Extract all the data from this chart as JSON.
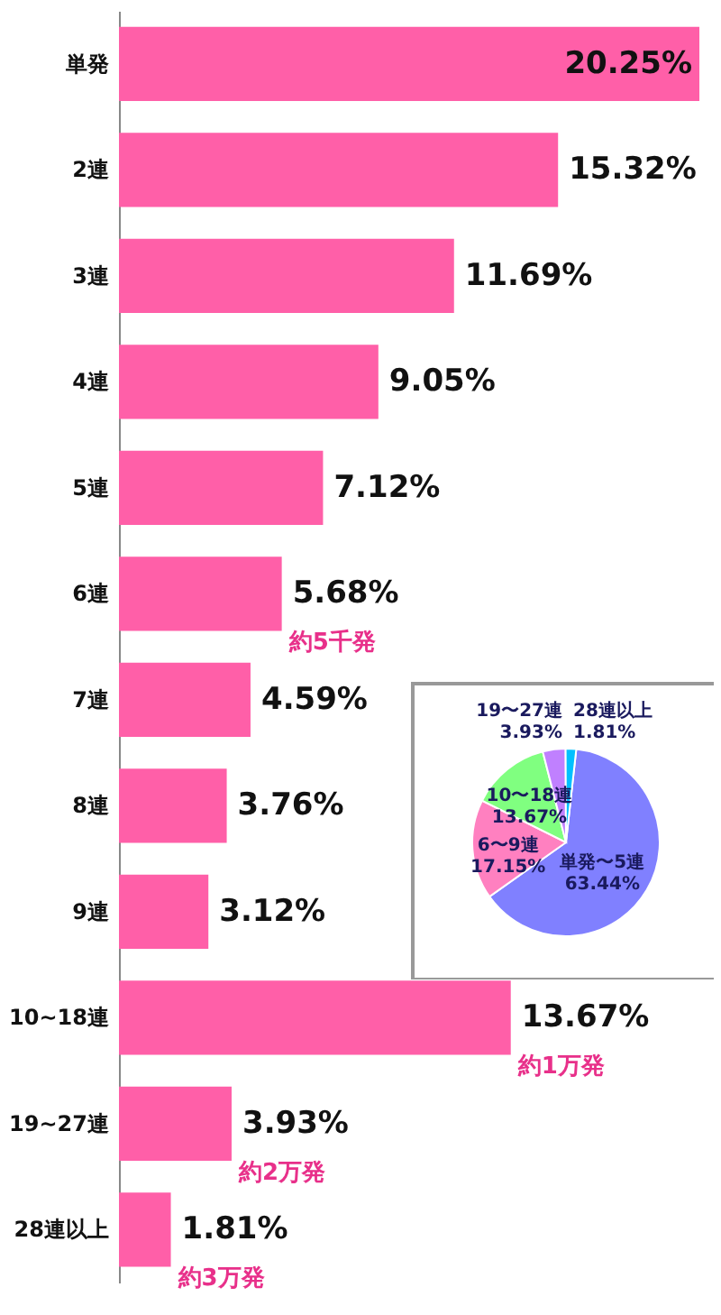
{
  "chart_data": [
    {
      "type": "bar",
      "orientation": "horizontal",
      "categories": [
        "単発",
        "2連",
        "3連",
        "4連",
        "5連",
        "6連",
        "7連",
        "8連",
        "9連",
        "10~18連",
        "19~27連",
        "28連以上"
      ],
      "values": [
        20.25,
        15.32,
        11.69,
        9.05,
        7.12,
        5.68,
        4.59,
        3.76,
        3.12,
        13.67,
        3.93,
        1.81
      ],
      "value_labels": [
        "20.25%",
        "15.32%",
        "11.69%",
        "9.05%",
        "7.12%",
        "5.68%",
        "4.59%",
        "3.76%",
        "3.12%",
        "13.67%",
        "3.93%",
        "1.81%"
      ],
      "color": "#ff5fa8",
      "annotations": [
        {
          "text": "約5千発",
          "x": 5.68,
          "y": "6連"
        },
        {
          "text": "約1万発",
          "x": 13.67,
          "y": "10~18連"
        },
        {
          "text": "約2万発",
          "x": 3.93,
          "y": "19~27連"
        },
        {
          "text": "約3万発",
          "x": 1.81,
          "y": "28連以上"
        }
      ]
    },
    {
      "type": "pie",
      "categories": [
        "単発〜5連",
        "6〜9連",
        "10〜18連",
        "19〜27連",
        "28連以上"
      ],
      "values": [
        63.44,
        17.15,
        13.67,
        3.93,
        1.81
      ],
      "value_labels": [
        "63.44%",
        "17.15%",
        "13.67%",
        "3.93%",
        "1.81%"
      ],
      "colors": [
        "#8080ff",
        "#ff80c0",
        "#80ff80",
        "#c080ff",
        "#00c0ff"
      ]
    }
  ]
}
